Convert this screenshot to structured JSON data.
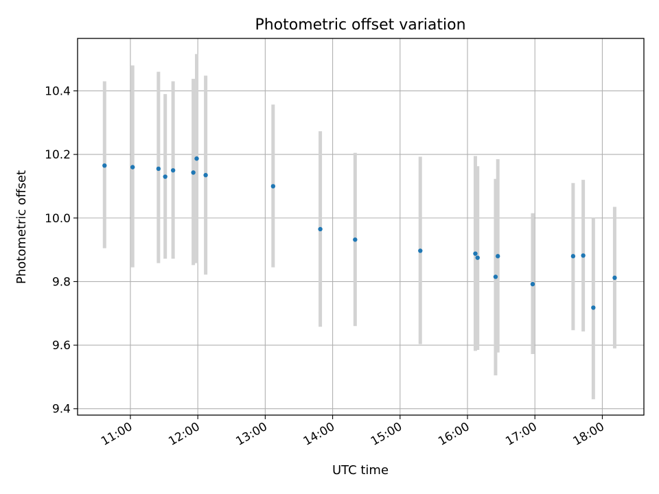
{
  "chart_data": {
    "type": "scatter",
    "title": "Photometric offset variation",
    "xlabel": "UTC time",
    "ylabel": "Photometric offset",
    "x_axis_type": "time",
    "xlim": [
      "10:13",
      "18:37"
    ],
    "ylim": [
      9.38,
      10.565
    ],
    "xticks": [
      "11:00",
      "12:00",
      "13:00",
      "14:00",
      "15:00",
      "16:00",
      "17:00",
      "18:00"
    ],
    "yticks": [
      "9.4",
      "9.6",
      "9.8",
      "10.0",
      "10.2",
      "10.4"
    ],
    "grid": true,
    "legend": "none",
    "colors": {
      "points": "#1f77b4",
      "errorbars": "#d3d3d3",
      "grid": "#b0b0b0",
      "axes": "#000000"
    },
    "points": [
      {
        "x": "10:37",
        "y": 10.165,
        "ylow": 9.905,
        "yhigh": 10.43
      },
      {
        "x": "11:02",
        "y": 10.16,
        "ylow": 9.845,
        "yhigh": 10.48
      },
      {
        "x": "11:25",
        "y": 10.155,
        "ylow": 9.858,
        "yhigh": 10.46
      },
      {
        "x": "11:31",
        "y": 10.13,
        "ylow": 9.872,
        "yhigh": 10.39
      },
      {
        "x": "11:38",
        "y": 10.15,
        "ylow": 9.872,
        "yhigh": 10.43
      },
      {
        "x": "11:56",
        "y": 10.143,
        "ylow": 9.852,
        "yhigh": 10.438
      },
      {
        "x": "11:59",
        "y": 10.187,
        "ylow": 9.858,
        "yhigh": 10.516
      },
      {
        "x": "12:07",
        "y": 10.135,
        "ylow": 9.822,
        "yhigh": 10.448
      },
      {
        "x": "13:07",
        "y": 10.1,
        "ylow": 9.845,
        "yhigh": 10.357
      },
      {
        "x": "13:49",
        "y": 9.965,
        "ylow": 9.658,
        "yhigh": 10.273
      },
      {
        "x": "14:20",
        "y": 9.932,
        "ylow": 9.66,
        "yhigh": 10.205
      },
      {
        "x": "15:18",
        "y": 9.897,
        "ylow": 9.603,
        "yhigh": 10.193
      },
      {
        "x": "16:07",
        "y": 9.888,
        "ylow": 9.582,
        "yhigh": 10.195
      },
      {
        "x": "16:09",
        "y": 9.875,
        "ylow": 9.585,
        "yhigh": 10.163
      },
      {
        "x": "16:25",
        "y": 9.815,
        "ylow": 9.505,
        "yhigh": 10.123
      },
      {
        "x": "16:27",
        "y": 9.88,
        "ylow": 9.577,
        "yhigh": 10.185
      },
      {
        "x": "16:58",
        "y": 9.792,
        "ylow": 9.572,
        "yhigh": 10.015
      },
      {
        "x": "17:34",
        "y": 9.88,
        "ylow": 9.647,
        "yhigh": 10.11
      },
      {
        "x": "17:43",
        "y": 9.882,
        "ylow": 9.643,
        "yhigh": 10.12
      },
      {
        "x": "17:52",
        "y": 9.718,
        "ylow": 9.43,
        "yhigh": 10.0
      },
      {
        "x": "18:11",
        "y": 9.812,
        "ylow": 9.59,
        "yhigh": 10.035
      }
    ]
  }
}
